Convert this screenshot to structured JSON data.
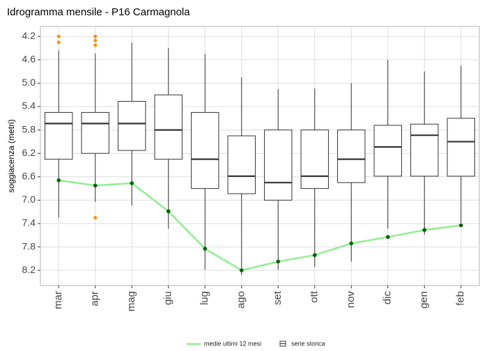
{
  "chart_data": {
    "type": "box",
    "title": "Idrogramma mensile - P16 Carmagnola",
    "y_label": "soggiacenza (metri)",
    "categories": [
      "mar",
      "apr",
      "mag",
      "giu",
      "lug",
      "ago",
      "set",
      "ott",
      "nov",
      "dic",
      "gen",
      "feb"
    ],
    "ylim": [
      4.03,
      8.46
    ],
    "y_reversed": true,
    "yticks": [
      4.2,
      4.6,
      {
        "value": 5,
        "label": "5.0"
      },
      5.4,
      5.8,
      6.2,
      6.6,
      {
        "value": 7,
        "label": "7.0"
      },
      7.4,
      7.8,
      8.2
    ],
    "grid": true,
    "legend": "bottom",
    "boxes": {
      "name": "serie storica",
      "color": "#333333",
      "outlier_color": "#ff8c00",
      "min": [
        4.44,
        4.49,
        4.31,
        4.4,
        4.5,
        4.9,
        5.1,
        5.09,
        5.0,
        4.6,
        4.8,
        4.7
      ],
      "q1": [
        5.5,
        5.5,
        5.31,
        5.2,
        5.5,
        5.9,
        5.8,
        5.8,
        5.8,
        5.72,
        5.7,
        5.6
      ],
      "median": [
        5.69,
        5.69,
        5.69,
        5.8,
        6.3,
        6.59,
        6.7,
        6.59,
        6.3,
        6.09,
        5.89,
        6.0
      ],
      "q3": [
        6.3,
        6.2,
        6.15,
        6.3,
        6.8,
        6.89,
        7.0,
        6.8,
        6.7,
        6.59,
        6.59,
        6.59
      ],
      "max": [
        7.3,
        7.03,
        7.09,
        7.49,
        8.19,
        8.28,
        8.19,
        8.14,
        8.05,
        7.49,
        7.59,
        7.39
      ],
      "outliers": [
        [
          4.2,
          4.3
        ],
        [
          4.2,
          4.27,
          4.35,
          7.3
        ],
        [],
        [],
        [],
        [],
        [],
        [],
        [],
        [],
        [],
        []
      ]
    },
    "line": {
      "name": "medie ultimi 12 mesi",
      "color": "#90ee90",
      "point_color": "#006400",
      "values": [
        6.66,
        6.75,
        6.71,
        7.19,
        7.83,
        8.2,
        8.05,
        7.94,
        7.74,
        7.63,
        7.51,
        7.43
      ]
    }
  }
}
